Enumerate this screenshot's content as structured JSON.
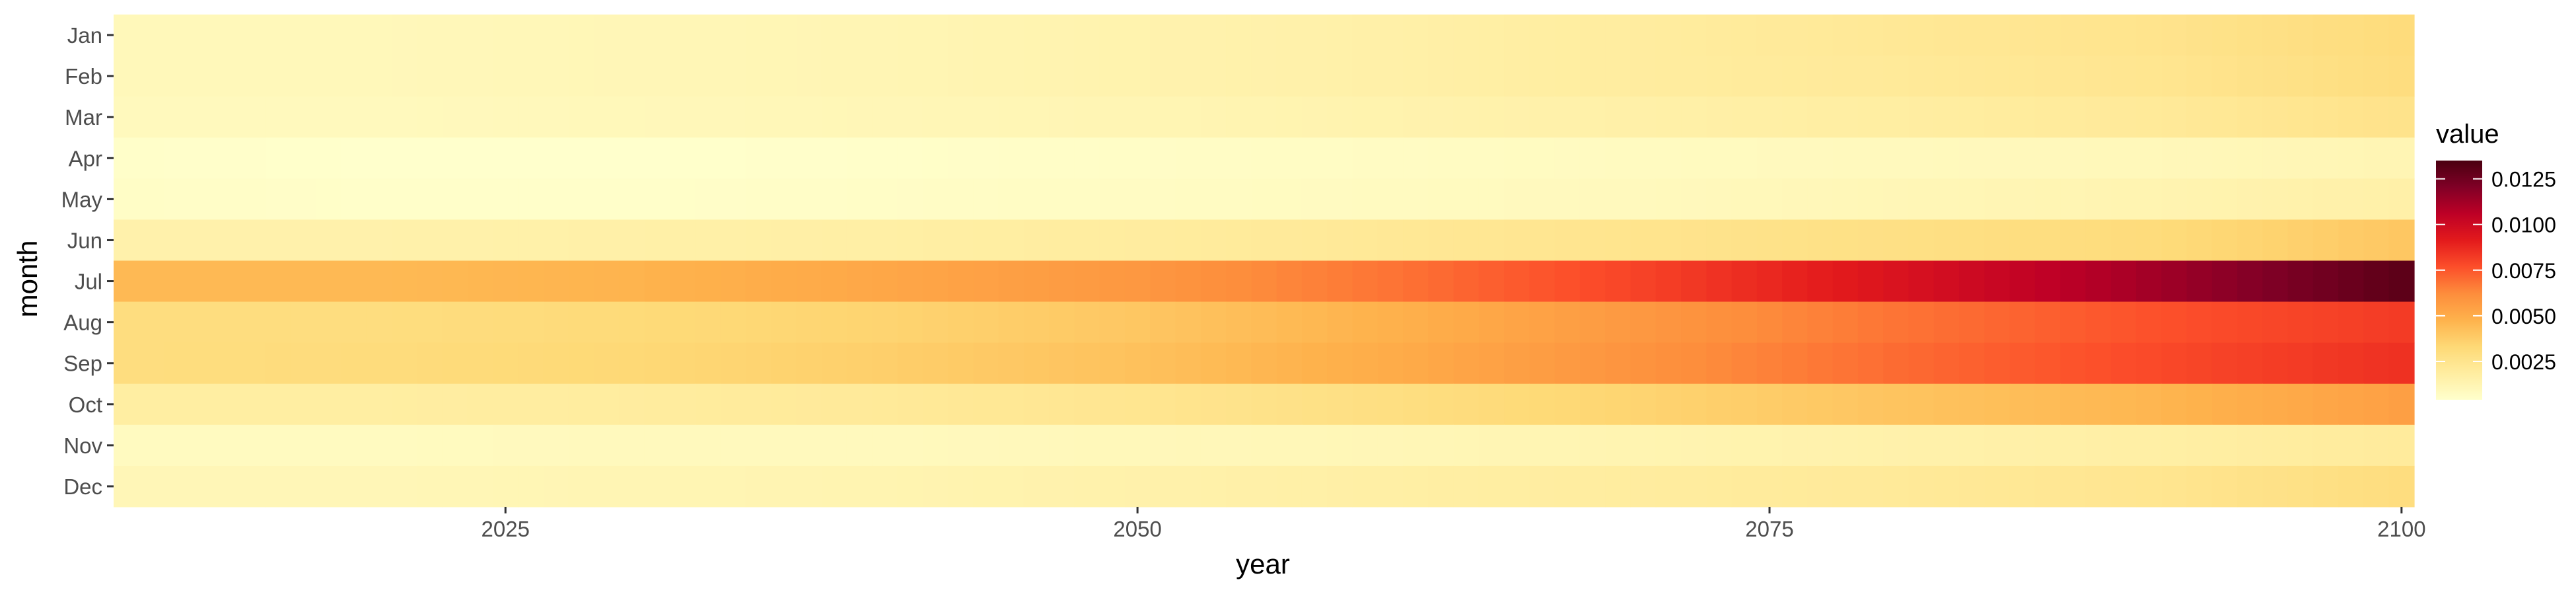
{
  "chart_data": {
    "type": "heatmap",
    "title": "",
    "xlabel": "year",
    "ylabel": "month",
    "x_range": [
      2010,
      2100
    ],
    "x_ticks": [
      2025,
      2050,
      2075,
      2100
    ],
    "months": [
      "Jan",
      "Feb",
      "Mar",
      "Apr",
      "May",
      "Jun",
      "Jul",
      "Aug",
      "Sep",
      "Oct",
      "Nov",
      "Dec"
    ],
    "year_anchors": [
      2010,
      2020,
      2030,
      2040,
      2050,
      2060,
      2070,
      2080,
      2090,
      2100
    ],
    "rows": [
      {
        "month": "Jan",
        "values": [
          0.001,
          0.001,
          0.0011,
          0.0012,
          0.0014,
          0.0016,
          0.0019,
          0.0022,
          0.0025,
          0.0031
        ]
      },
      {
        "month": "Feb",
        "values": [
          0.001,
          0.001,
          0.0011,
          0.0012,
          0.0014,
          0.0016,
          0.0019,
          0.0021,
          0.0024,
          0.003
        ]
      },
      {
        "month": "Mar",
        "values": [
          0.0009,
          0.0009,
          0.001,
          0.0011,
          0.0012,
          0.0014,
          0.0016,
          0.0018,
          0.0021,
          0.0026
        ]
      },
      {
        "month": "Apr",
        "values": [
          0.0005,
          0.0004,
          0.0004,
          0.0005,
          0.0006,
          0.0007,
          0.0008,
          0.0009,
          0.001,
          0.0012
        ]
      },
      {
        "month": "May",
        "values": [
          0.0006,
          0.0005,
          0.0005,
          0.0006,
          0.0007,
          0.0008,
          0.0009,
          0.0011,
          0.0013,
          0.0016
        ]
      },
      {
        "month": "Jun",
        "values": [
          0.0015,
          0.0015,
          0.0016,
          0.0017,
          0.0019,
          0.0022,
          0.0025,
          0.0028,
          0.0031,
          0.004
        ]
      },
      {
        "month": "Jul",
        "values": [
          0.0045,
          0.0045,
          0.0047,
          0.0052,
          0.0058,
          0.0068,
          0.008,
          0.0095,
          0.0112,
          0.013
        ]
      },
      {
        "month": "Aug",
        "values": [
          0.003,
          0.003,
          0.0032,
          0.0035,
          0.004,
          0.0048,
          0.0058,
          0.0068,
          0.0076,
          0.0082
        ]
      },
      {
        "month": "Sep",
        "values": [
          0.003,
          0.0031,
          0.0033,
          0.0037,
          0.0042,
          0.005,
          0.006,
          0.007,
          0.0078,
          0.0085
        ]
      },
      {
        "month": "Oct",
        "values": [
          0.0018,
          0.0018,
          0.0019,
          0.0021,
          0.0024,
          0.0029,
          0.0035,
          0.0041,
          0.0046,
          0.0055
        ]
      },
      {
        "month": "Nov",
        "values": [
          0.0008,
          0.0008,
          0.0009,
          0.0009,
          0.001,
          0.0011,
          0.0013,
          0.0015,
          0.0017,
          0.002
        ]
      },
      {
        "month": "Dec",
        "values": [
          0.0011,
          0.0011,
          0.0012,
          0.0013,
          0.0015,
          0.0017,
          0.0019,
          0.0021,
          0.0024,
          0.003
        ]
      }
    ],
    "legend": {
      "title": "value",
      "placement": "right",
      "range": [
        0.0004,
        0.0135
      ],
      "ticks": [
        0.0025,
        0.005,
        0.0075,
        0.01,
        0.0125
      ],
      "tick_labels": [
        "0.0025",
        "0.0050",
        "0.0075",
        "0.0100",
        "0.0125"
      ]
    },
    "palette": [
      "#ffffcc",
      "#ffeda0",
      "#fed976",
      "#feb24c",
      "#fd8d3c",
      "#fc4e2a",
      "#e31a1c",
      "#bd0026",
      "#800026",
      "#4a0010"
    ],
    "panel_background": "#ebebeb",
    "grid": false
  }
}
